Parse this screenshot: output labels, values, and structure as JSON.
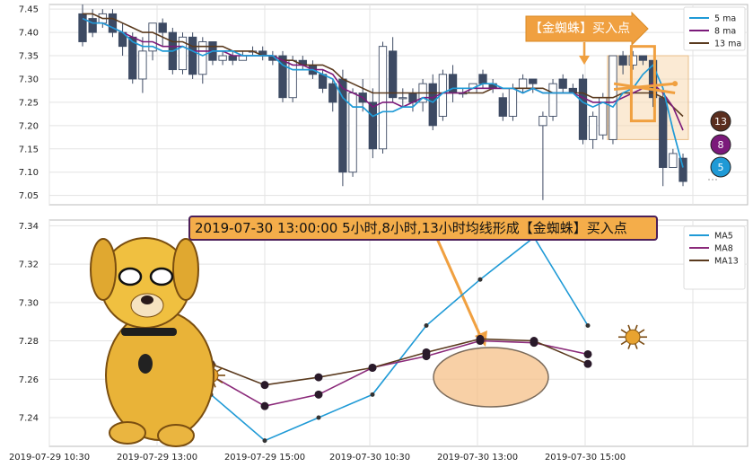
{
  "chart_data": [
    {
      "type": "candlestick",
      "ylim": [
        7.03,
        7.46
      ],
      "yticks": [
        "7.45",
        "7.40",
        "7.35",
        "7.30",
        "7.25",
        "7.20",
        "7.15",
        "7.10",
        "7.05"
      ],
      "legend": [
        "5 ma",
        "8 ma",
        "13 ma"
      ],
      "legend_position": "top-right",
      "grid": true,
      "colors": {
        "up": "#ffffff",
        "down": "#3d4a63",
        "ma5": "#1f9ad6",
        "ma8": "#7b1a7a",
        "ma13": "#5a3a1e"
      },
      "candles": [
        [
          7.44,
          7.38,
          7.46,
          7.37
        ],
        [
          7.43,
          7.4,
          7.45,
          7.39
        ],
        [
          7.42,
          7.44,
          7.45,
          7.41
        ],
        [
          7.44,
          7.4,
          7.45,
          7.39
        ],
        [
          7.4,
          7.37,
          7.42,
          7.35
        ],
        [
          7.39,
          7.3,
          7.4,
          7.29
        ],
        [
          7.3,
          7.36,
          7.39,
          7.27
        ],
        [
          7.36,
          7.42,
          7.42,
          7.34
        ],
        [
          7.42,
          7.4,
          7.43,
          7.37
        ],
        [
          7.4,
          7.32,
          7.41,
          7.31
        ],
        [
          7.32,
          7.39,
          7.4,
          7.31
        ],
        [
          7.39,
          7.31,
          7.4,
          7.3
        ],
        [
          7.31,
          7.38,
          7.39,
          7.29
        ],
        [
          7.38,
          7.34,
          7.38,
          7.33
        ],
        [
          7.34,
          7.35,
          7.36,
          7.33
        ],
        [
          7.35,
          7.34,
          7.36,
          7.33
        ],
        [
          7.34,
          7.35,
          7.36,
          7.34
        ],
        [
          7.36,
          7.36,
          7.37,
          7.35
        ],
        [
          7.36,
          7.35,
          7.37,
          7.34
        ],
        [
          7.35,
          7.34,
          7.36,
          7.33
        ],
        [
          7.35,
          7.26,
          7.36,
          7.25
        ],
        [
          7.26,
          7.34,
          7.35,
          7.25
        ],
        [
          7.34,
          7.33,
          7.35,
          7.32
        ],
        [
          7.33,
          7.31,
          7.34,
          7.3
        ],
        [
          7.31,
          7.28,
          7.32,
          7.27
        ],
        [
          7.29,
          7.25,
          7.3,
          7.23
        ],
        [
          7.3,
          7.1,
          7.32,
          7.07
        ],
        [
          7.1,
          7.27,
          7.28,
          7.09
        ],
        [
          7.27,
          7.25,
          7.3,
          7.23
        ],
        [
          7.25,
          7.15,
          7.28,
          7.13
        ],
        [
          7.15,
          7.37,
          7.38,
          7.14
        ],
        [
          7.36,
          7.26,
          7.39,
          7.25
        ],
        [
          7.26,
          7.26,
          7.28,
          7.24
        ],
        [
          7.27,
          7.25,
          7.28,
          7.23
        ],
        [
          7.25,
          7.29,
          7.3,
          7.23
        ],
        [
          7.29,
          7.2,
          7.31,
          7.19
        ],
        [
          7.22,
          7.31,
          7.32,
          7.21
        ],
        [
          7.31,
          7.27,
          7.33,
          7.25
        ],
        [
          7.27,
          7.27,
          7.28,
          7.26
        ],
        [
          7.27,
          7.29,
          7.29,
          7.27
        ],
        [
          7.31,
          7.29,
          7.32,
          7.28
        ],
        [
          7.29,
          7.28,
          7.3,
          7.27
        ],
        [
          7.26,
          7.22,
          7.27,
          7.21
        ],
        [
          7.22,
          7.28,
          7.29,
          7.21
        ],
        [
          7.28,
          7.3,
          7.31,
          7.27
        ],
        [
          7.3,
          7.29,
          7.3,
          7.27
        ],
        [
          7.2,
          7.22,
          7.23,
          7.04
        ],
        [
          7.22,
          7.29,
          7.3,
          7.21
        ],
        [
          7.3,
          7.28,
          7.31,
          7.27
        ],
        [
          7.28,
          7.27,
          7.29,
          7.27
        ],
        [
          7.3,
          7.17,
          7.31,
          7.16
        ],
        [
          7.17,
          7.22,
          7.23,
          7.15
        ],
        [
          7.18,
          7.26,
          7.27,
          7.17
        ],
        [
          7.17,
          7.35,
          7.35,
          7.16
        ],
        [
          7.35,
          7.33,
          7.36,
          7.31
        ],
        [
          7.33,
          7.35,
          7.36,
          7.32
        ],
        [
          7.35,
          7.34,
          7.35,
          7.33
        ],
        [
          7.34,
          7.26,
          7.34,
          7.24
        ],
        [
          7.26,
          7.11,
          7.27,
          7.07
        ],
        [
          7.11,
          7.14,
          7.15,
          7.11
        ],
        [
          7.13,
          7.08,
          7.14,
          7.07
        ]
      ],
      "ma5": [
        7.43,
        7.42,
        7.42,
        7.41,
        7.4,
        7.38,
        7.37,
        7.37,
        7.36,
        7.36,
        7.37,
        7.36,
        7.35,
        7.36,
        7.36,
        7.36,
        7.35,
        7.35,
        7.35,
        7.35,
        7.33,
        7.32,
        7.32,
        7.32,
        7.31,
        7.3,
        7.26,
        7.24,
        7.24,
        7.22,
        7.23,
        7.23,
        7.24,
        7.24,
        7.26,
        7.25,
        7.27,
        7.28,
        7.28,
        7.28,
        7.29,
        7.29,
        7.28,
        7.28,
        7.27,
        7.28,
        7.27,
        7.27,
        7.27,
        7.27,
        7.25,
        7.24,
        7.25,
        7.24,
        7.27,
        7.28,
        7.31,
        7.33,
        7.28,
        7.19,
        7.11
      ],
      "ma8": [
        7.43,
        7.42,
        7.42,
        7.41,
        7.4,
        7.39,
        7.38,
        7.38,
        7.37,
        7.37,
        7.37,
        7.36,
        7.36,
        7.36,
        7.36,
        7.35,
        7.35,
        7.35,
        7.35,
        7.35,
        7.34,
        7.33,
        7.33,
        7.32,
        7.32,
        7.31,
        7.28,
        7.27,
        7.26,
        7.24,
        7.25,
        7.25,
        7.24,
        7.25,
        7.26,
        7.26,
        7.27,
        7.27,
        7.27,
        7.28,
        7.28,
        7.28,
        7.28,
        7.28,
        7.27,
        7.28,
        7.27,
        7.27,
        7.27,
        7.27,
        7.26,
        7.25,
        7.25,
        7.25,
        7.26,
        7.27,
        7.28,
        7.29,
        7.27,
        7.24,
        7.19
      ],
      "ma13": [
        7.44,
        7.44,
        7.43,
        7.43,
        7.42,
        7.41,
        7.4,
        7.4,
        7.39,
        7.38,
        7.38,
        7.37,
        7.37,
        7.37,
        7.37,
        7.36,
        7.36,
        7.36,
        7.35,
        7.35,
        7.34,
        7.34,
        7.33,
        7.33,
        7.33,
        7.32,
        7.3,
        7.29,
        7.28,
        7.27,
        7.27,
        7.27,
        7.27,
        7.27,
        7.27,
        7.27,
        7.27,
        7.27,
        7.27,
        7.27,
        7.27,
        7.28,
        7.28,
        7.28,
        7.28,
        7.28,
        7.28,
        7.27,
        7.27,
        7.27,
        7.27,
        7.26,
        7.26,
        7.26,
        7.27,
        7.27,
        7.27,
        7.27,
        7.26,
        7.24,
        7.22
      ],
      "end_badges": [
        "13",
        "8",
        "5"
      ],
      "annotation": "【金蜘蛛】买入点"
    },
    {
      "type": "line",
      "ylim": [
        7.225,
        7.343
      ],
      "yticks": [
        "7.34",
        "7.32",
        "7.30",
        "7.28",
        "7.26",
        "7.24"
      ],
      "xticks": [
        "2019-07-29 10:30",
        "2019-07-29 13:00",
        "2019-07-29 15:00",
        "2019-07-30 10:30",
        "2019-07-30 13:00",
        "2019-07-30 15:00"
      ],
      "legend": [
        "MA5",
        "MA8",
        "MA13"
      ],
      "legend_position": "top-right",
      "grid": true,
      "x_index": [
        3,
        4,
        5,
        6,
        7,
        8,
        9,
        10
      ],
      "series": [
        {
          "name": "MA5",
          "color": "#1f9ad6",
          "values": [
            7.252,
            7.228,
            7.24,
            7.252,
            7.288,
            7.312,
            7.334,
            7.288
          ]
        },
        {
          "name": "MA8",
          "color": "#8b2a7a",
          "values": [
            7.262,
            7.246,
            7.252,
            7.266,
            7.272,
            7.28,
            7.279,
            7.273
          ]
        },
        {
          "name": "MA13",
          "color": "#5a3a1e",
          "values": [
            7.268,
            7.257,
            7.261,
            7.266,
            7.274,
            7.281,
            7.28,
            7.268
          ]
        }
      ],
      "title": "2019-07-30 13:00:00 5小时,8小时,13小时均线形成【金蜘蛛】买入点"
    }
  ]
}
